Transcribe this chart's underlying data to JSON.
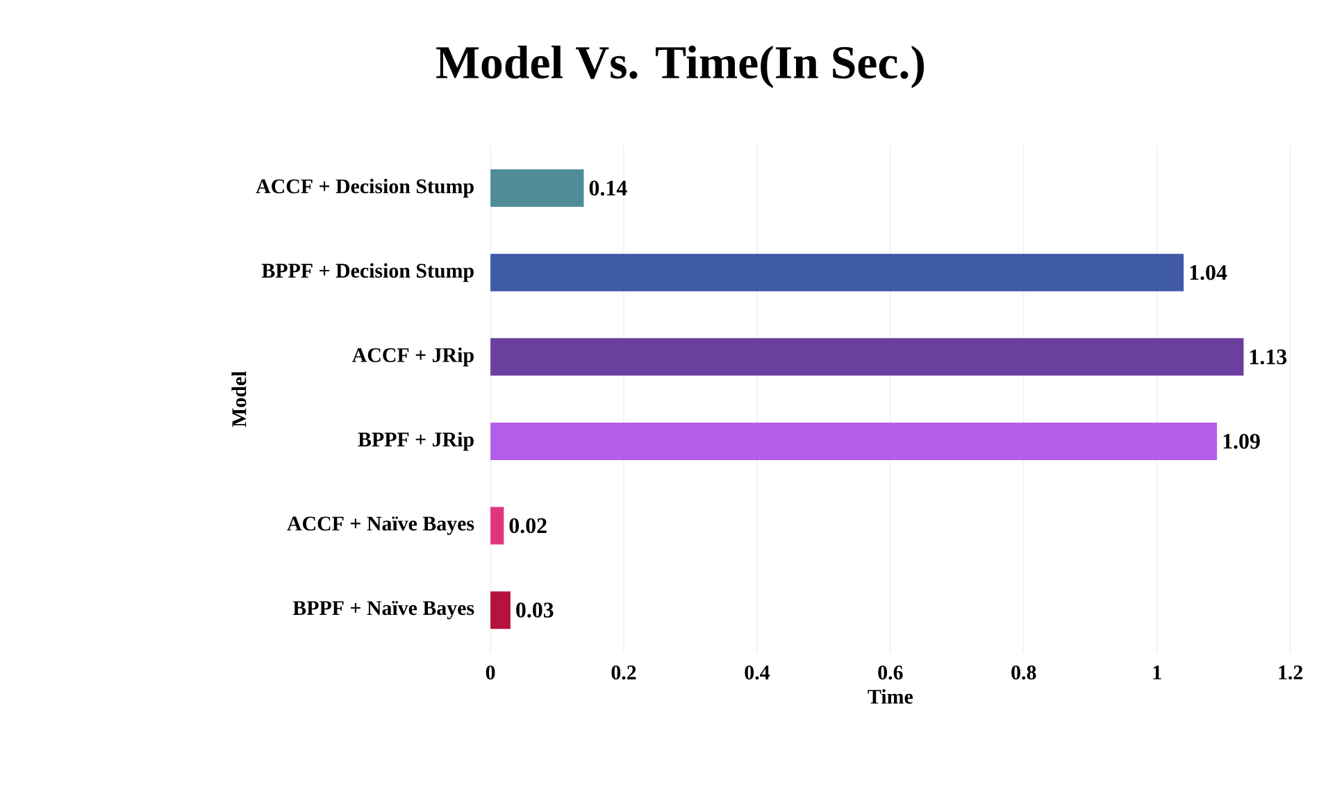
{
  "chart_data": {
    "type": "bar",
    "orientation": "horizontal",
    "title": "Model Vs. Time(In Sec.)",
    "xlabel": "Time",
    "ylabel": "Model",
    "categories": [
      "ACCF + Decision Stump",
      "BPPF + Decision Stump",
      "ACCF + JRip",
      "BPPF + JRip",
      "ACCF + Naïve Bayes",
      "BPPF + Naïve Bayes"
    ],
    "values": [
      0.14,
      1.04,
      1.13,
      1.09,
      0.02,
      0.03
    ],
    "colors": [
      "#4f8c98",
      "#3f5ba8",
      "#6a3f9e",
      "#b35ee8",
      "#e0357e",
      "#b5123c"
    ],
    "xlim": [
      0,
      1.2
    ],
    "xticks": [
      0,
      0.2,
      0.4,
      0.6,
      0.8,
      1,
      1.2
    ],
    "grid": "x",
    "data_labels": true
  }
}
